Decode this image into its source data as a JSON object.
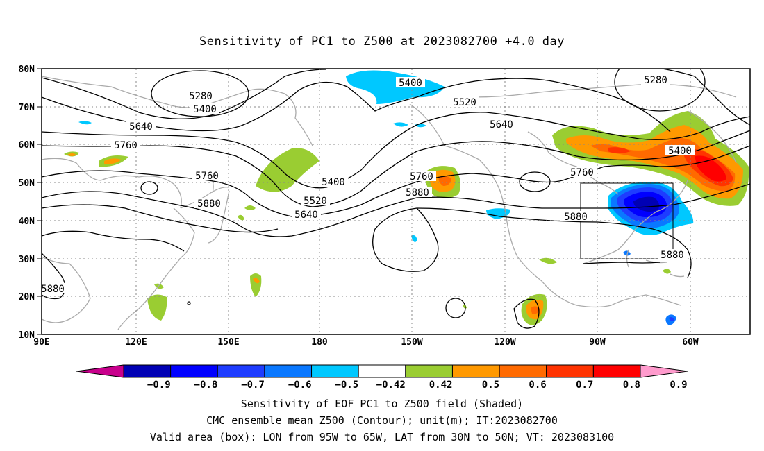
{
  "title": "Sensitivity of PC1 to Z500 at 2023082700 +4.0 day",
  "lat_labels": [
    "80N",
    "70N",
    "60N",
    "50N",
    "40N",
    "30N",
    "20N",
    "10N"
  ],
  "lon_labels": [
    "90E",
    "120E",
    "150E",
    "180",
    "150W",
    "120W",
    "90W",
    "60W"
  ],
  "contour_labels": [
    {
      "text": "5280"
    },
    {
      "text": "5400"
    },
    {
      "text": "5640"
    },
    {
      "text": "5760"
    },
    {
      "text": "5760"
    },
    {
      "text": "5880"
    },
    {
      "text": "5400"
    },
    {
      "text": "5520"
    },
    {
      "text": "5640"
    },
    {
      "text": "5400"
    },
    {
      "text": "5520"
    },
    {
      "text": "5640"
    },
    {
      "text": "5760"
    },
    {
      "text": "5880"
    },
    {
      "text": "5760"
    },
    {
      "text": "5880"
    },
    {
      "text": "5280"
    },
    {
      "text": "5400"
    },
    {
      "text": "5880"
    },
    {
      "text": "5880"
    }
  ],
  "colorbar": {
    "colors": [
      "#c8008c",
      "#0000b4",
      "#0000ff",
      "#1e3cff",
      "#0a78ff",
      "#00c8ff",
      "#ffffff",
      "#9acd32",
      "#ff9900",
      "#ff6a00",
      "#ff3300",
      "#ff0000",
      "#ff9bcd"
    ],
    "labels": [
      "−0.9",
      "−0.8",
      "−0.7",
      "−0.6",
      "−0.5",
      "−0.42",
      "0.42",
      "0.5",
      "0.6",
      "0.7",
      "0.8",
      "0.9"
    ]
  },
  "caption": {
    "line1": "Sensitivity of EOF PC1 to Z500 field (Shaded)",
    "line2": "CMC ensemble mean Z500 (Contour); unit(m); IT:2023082700",
    "line3": "Valid area (box): LON from 95W to 65W, LAT from 30N to 50N; VT: 2023083100"
  },
  "valid_area": {
    "lon_from": "95W",
    "lon_to": "65W",
    "lat_from": "30N",
    "lat_to": "50N"
  }
}
